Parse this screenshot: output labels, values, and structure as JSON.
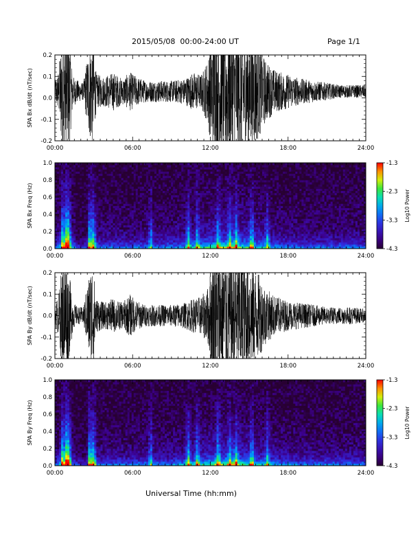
{
  "header": {
    "date_range": "2015/05/08  00:00-24:00 UT",
    "page": "Page 1/1"
  },
  "x_axis_title": "Universal Time (hh:mm)",
  "chart_data": [
    {
      "type": "line",
      "ylabel": "SPA Bx dB/dt (nT/sec)",
      "xlim": [
        "00:00",
        "24:00"
      ],
      "x_ticks": [
        "00:00",
        "06:00",
        "12:00",
        "18:00",
        "24:00"
      ],
      "ylim": [
        -0.2,
        0.2
      ],
      "y_ticks": [
        "-0.2",
        "-0.1",
        "0.0",
        "0.1",
        "0.2"
      ],
      "color": "#000000",
      "baseline": 0.03,
      "envelope": {
        "hours": [
          0,
          0.3,
          0.5,
          0.8,
          1.1,
          1.4,
          1.8,
          2.2,
          2.6,
          2.9,
          3.2,
          3.8,
          4.5,
          5.2,
          5.8,
          6.3,
          7,
          8,
          9,
          10,
          10.7,
          11.3,
          11.8,
          12.2,
          12.8,
          13.5,
          14.5,
          15.5,
          16.3,
          17,
          18,
          19,
          20,
          21,
          22,
          23,
          24
        ],
        "amplitude": [
          0.05,
          0.1,
          0.26,
          0.3,
          0.26,
          0.07,
          0.05,
          0.04,
          0.2,
          0.26,
          0.08,
          0.07,
          0.09,
          0.06,
          0.09,
          0.07,
          0.05,
          0.05,
          0.05,
          0.06,
          0.09,
          0.08,
          0.15,
          0.3,
          0.3,
          0.3,
          0.3,
          0.25,
          0.14,
          0.1,
          0.08,
          0.06,
          0.05,
          0.04,
          0.03,
          0.03,
          0.03
        ]
      }
    },
    {
      "type": "heatmap",
      "ylabel": "SPA Bx Freq (Hz)",
      "xlim": [
        "00:00",
        "24:00"
      ],
      "x_ticks": [
        "00:00",
        "06:00",
        "12:00",
        "18:00",
        "24:00"
      ],
      "ylim": [
        0,
        1
      ],
      "y_ticks": [
        "0.0",
        "0.2",
        "0.4",
        "0.6",
        "0.8",
        "1.0"
      ],
      "colorbar": {
        "label": "Log10 Power",
        "ticks": [
          "-1.3",
          "-2.3",
          "-3.3",
          "-4.3"
        ],
        "range": [
          -4.3,
          -1.3
        ]
      }
    },
    {
      "type": "line",
      "ylabel": "SPA By dB/dt (nT/sec)",
      "xlim": [
        "00:00",
        "24:00"
      ],
      "x_ticks": [
        "00:00",
        "06:00",
        "12:00",
        "18:00",
        "24:00"
      ],
      "ylim": [
        -0.2,
        0.2
      ],
      "y_ticks": [
        "-0.2",
        "-0.1",
        "0.0",
        "0.1",
        "0.2"
      ],
      "color": "#000000",
      "baseline": 0.0,
      "envelope": {
        "hours": [
          0,
          0.3,
          0.5,
          0.8,
          1.1,
          1.4,
          1.8,
          2.2,
          2.6,
          2.9,
          3.2,
          3.8,
          4.5,
          5.2,
          5.8,
          6.3,
          7,
          8,
          9,
          10,
          10.7,
          11.3,
          11.8,
          12.2,
          12.8,
          13.5,
          14.5,
          15.5,
          16.3,
          17,
          18,
          19,
          20,
          21,
          22,
          23,
          24
        ],
        "amplitude": [
          0.05,
          0.1,
          0.22,
          0.3,
          0.2,
          0.06,
          0.04,
          0.04,
          0.18,
          0.26,
          0.08,
          0.06,
          0.08,
          0.06,
          0.1,
          0.07,
          0.05,
          0.05,
          0.05,
          0.06,
          0.08,
          0.09,
          0.13,
          0.28,
          0.3,
          0.3,
          0.3,
          0.22,
          0.13,
          0.09,
          0.07,
          0.06,
          0.05,
          0.04,
          0.04,
          0.04,
          0.03
        ]
      }
    },
    {
      "type": "heatmap",
      "ylabel": "SPA By Freq (Hz)",
      "xlim": [
        "00:00",
        "24:00"
      ],
      "x_ticks": [
        "00:00",
        "06:00",
        "12:00",
        "18:00",
        "24:00"
      ],
      "ylim": [
        0,
        1
      ],
      "y_ticks": [
        "0.0",
        "0.2",
        "0.4",
        "0.6",
        "0.8",
        "1.0"
      ],
      "colorbar": {
        "label": "Log10 Power",
        "ticks": [
          "-1.3",
          "-2.3",
          "-3.3",
          "-4.3"
        ],
        "range": [
          -4.3,
          -1.3
        ]
      }
    }
  ]
}
